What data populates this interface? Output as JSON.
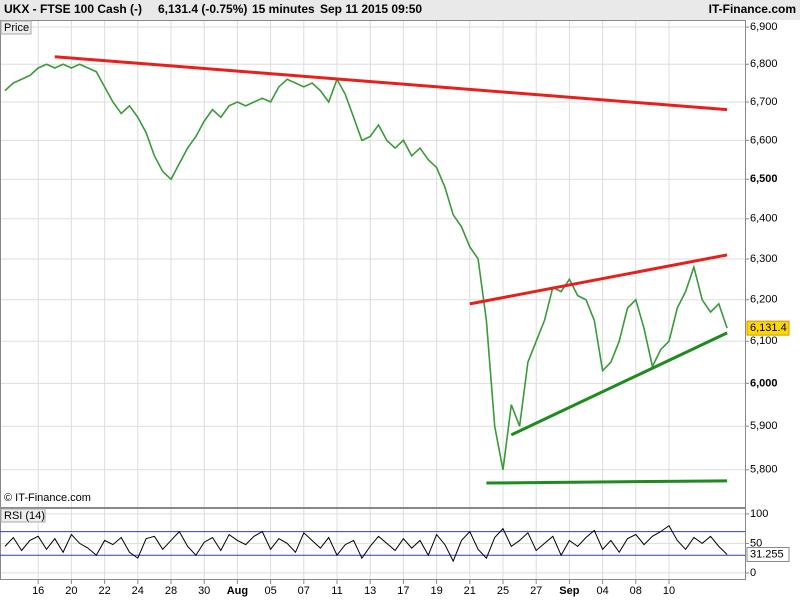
{
  "header": {
    "symbol": "UKX - FTSE 100 Cash (-)",
    "quote": "6,131.4 (-0.75%)",
    "interval": "15 minutes",
    "timestamp": "Sep 11 2015 09:50",
    "brand": "IT-Finance.com"
  },
  "copyright": "© IT-Finance.com",
  "chart_data": [
    {
      "type": "line",
      "title": "Price",
      "log_scale": true,
      "grid": true,
      "categories": [
        null,
        null,
        null,
        null,
        "16",
        null,
        null,
        null,
        "20",
        null,
        null,
        null,
        "22",
        null,
        null,
        null,
        "24",
        null,
        null,
        null,
        "28",
        null,
        null,
        null,
        "30",
        null,
        null,
        null,
        "Aug",
        null,
        null,
        null,
        "05",
        null,
        null,
        null,
        "07",
        null,
        null,
        null,
        "11",
        null,
        null,
        null,
        "13",
        null,
        null,
        null,
        "17",
        null,
        null,
        null,
        "19",
        null,
        null,
        null,
        "21",
        null,
        null,
        null,
        "25",
        null,
        null,
        null,
        "27",
        null,
        null,
        null,
        "Sep",
        null,
        null,
        null,
        "04",
        null,
        null,
        null,
        "08",
        null,
        null,
        null,
        "10",
        null,
        null,
        null,
        null,
        null,
        null,
        null
      ],
      "series": [
        {
          "name": "UKX",
          "color": "#3a9a3a",
          "values": [
            6730,
            6750,
            6760,
            6770,
            6790,
            6800,
            6790,
            6800,
            6790,
            6800,
            6790,
            6780,
            6740,
            6700,
            6670,
            6690,
            6660,
            6620,
            6560,
            6520,
            6500,
            6540,
            6580,
            6610,
            6650,
            6680,
            6660,
            6690,
            6700,
            6690,
            6700,
            6710,
            6700,
            6740,
            6760,
            6750,
            6740,
            6750,
            6730,
            6700,
            6760,
            6720,
            6660,
            6600,
            6610,
            6640,
            6600,
            6580,
            6600,
            6560,
            6580,
            6550,
            6530,
            6480,
            6410,
            6380,
            6330,
            6300,
            6150,
            5900,
            5800,
            5950,
            5900,
            6050,
            6100,
            6150,
            6230,
            6220,
            6250,
            6210,
            6200,
            6150,
            6030,
            6050,
            6100,
            6180,
            6200,
            6130,
            6040,
            6080,
            6100,
            6180,
            6220,
            6280,
            6200,
            6170,
            6190,
            6131.4
          ],
          "value_labels": [
            null,
            null,
            null,
            null,
            null,
            null,
            null,
            null,
            null,
            null,
            null,
            null,
            null,
            null,
            null,
            null,
            null,
            null,
            null,
            null,
            null,
            null,
            null,
            null,
            null,
            null,
            null,
            null,
            null,
            null,
            null,
            null,
            null,
            null,
            null,
            null,
            null,
            null,
            null,
            null,
            null,
            null,
            null,
            null,
            null,
            null,
            null,
            null,
            null,
            null,
            null,
            null,
            null,
            null,
            null,
            null,
            null,
            null,
            null,
            null,
            null,
            null,
            null,
            null,
            null,
            null,
            null,
            null,
            null,
            null,
            null,
            null,
            null,
            null,
            null,
            null,
            null,
            null,
            null,
            null,
            null,
            null,
            null,
            null,
            null,
            null,
            null,
            "6,131.4"
          ]
        }
      ],
      "trendlines": [
        {
          "color": "#e8201c",
          "x": [
            6,
            87
          ],
          "values": [
            6820,
            6680
          ]
        },
        {
          "color": "#e8201c",
          "x": [
            56,
            87
          ],
          "values": [
            6190,
            6310
          ]
        },
        {
          "color": "#1f8a1f",
          "x": [
            61,
            87
          ],
          "values": [
            5880,
            6120
          ]
        },
        {
          "color": "#1f8a1f",
          "x": [
            58,
            87
          ],
          "values": [
            5770,
            5775
          ]
        }
      ],
      "ylim": [
        5716,
        6919
      ],
      "yticks": [
        {
          "value": 5800,
          "label": "5,800"
        },
        {
          "value": 5900,
          "label": "5,900"
        },
        {
          "value": 6000,
          "label": "6,000"
        },
        {
          "value": 6100,
          "label": "6,100"
        },
        {
          "value": 6200,
          "label": "6,200"
        },
        {
          "value": 6300,
          "label": "6,300"
        },
        {
          "value": 6400,
          "label": "6,400"
        },
        {
          "value": 6500,
          "label": "6,500"
        },
        {
          "value": 6600,
          "label": "6,600"
        },
        {
          "value": 6700,
          "label": "6,700"
        },
        {
          "value": 6800,
          "label": "6,800"
        },
        {
          "value": 6900,
          "label": "6,900"
        }
      ]
    },
    {
      "type": "line",
      "title": "RSI (14)",
      "grid": true,
      "series": [
        {
          "name": "RSI",
          "color": "#000000",
          "values": [
            45,
            60,
            38,
            55,
            62,
            40,
            58,
            35,
            65,
            50,
            42,
            30,
            55,
            48,
            60,
            35,
            25,
            58,
            62,
            40,
            55,
            70,
            45,
            30,
            52,
            60,
            38,
            65,
            55,
            48,
            62,
            70,
            40,
            58,
            50,
            35,
            68,
            55,
            42,
            60,
            30,
            48,
            55,
            25,
            45,
            62,
            50,
            38,
            58,
            42,
            55,
            30,
            65,
            48,
            20,
            55,
            70,
            40,
            25,
            60,
            75,
            45,
            55,
            68,
            38,
            50,
            62,
            30,
            55,
            45,
            60,
            72,
            40,
            55,
            35,
            58,
            65,
            48,
            62,
            70,
            80,
            55,
            40,
            60,
            50,
            62,
            45,
            31.255
          ]
        }
      ],
      "levels": [
        70,
        30
      ],
      "level_color": "#2b3bd6",
      "ylim": [
        -12,
        110
      ],
      "yticks": [
        0,
        50,
        100
      ]
    }
  ]
}
